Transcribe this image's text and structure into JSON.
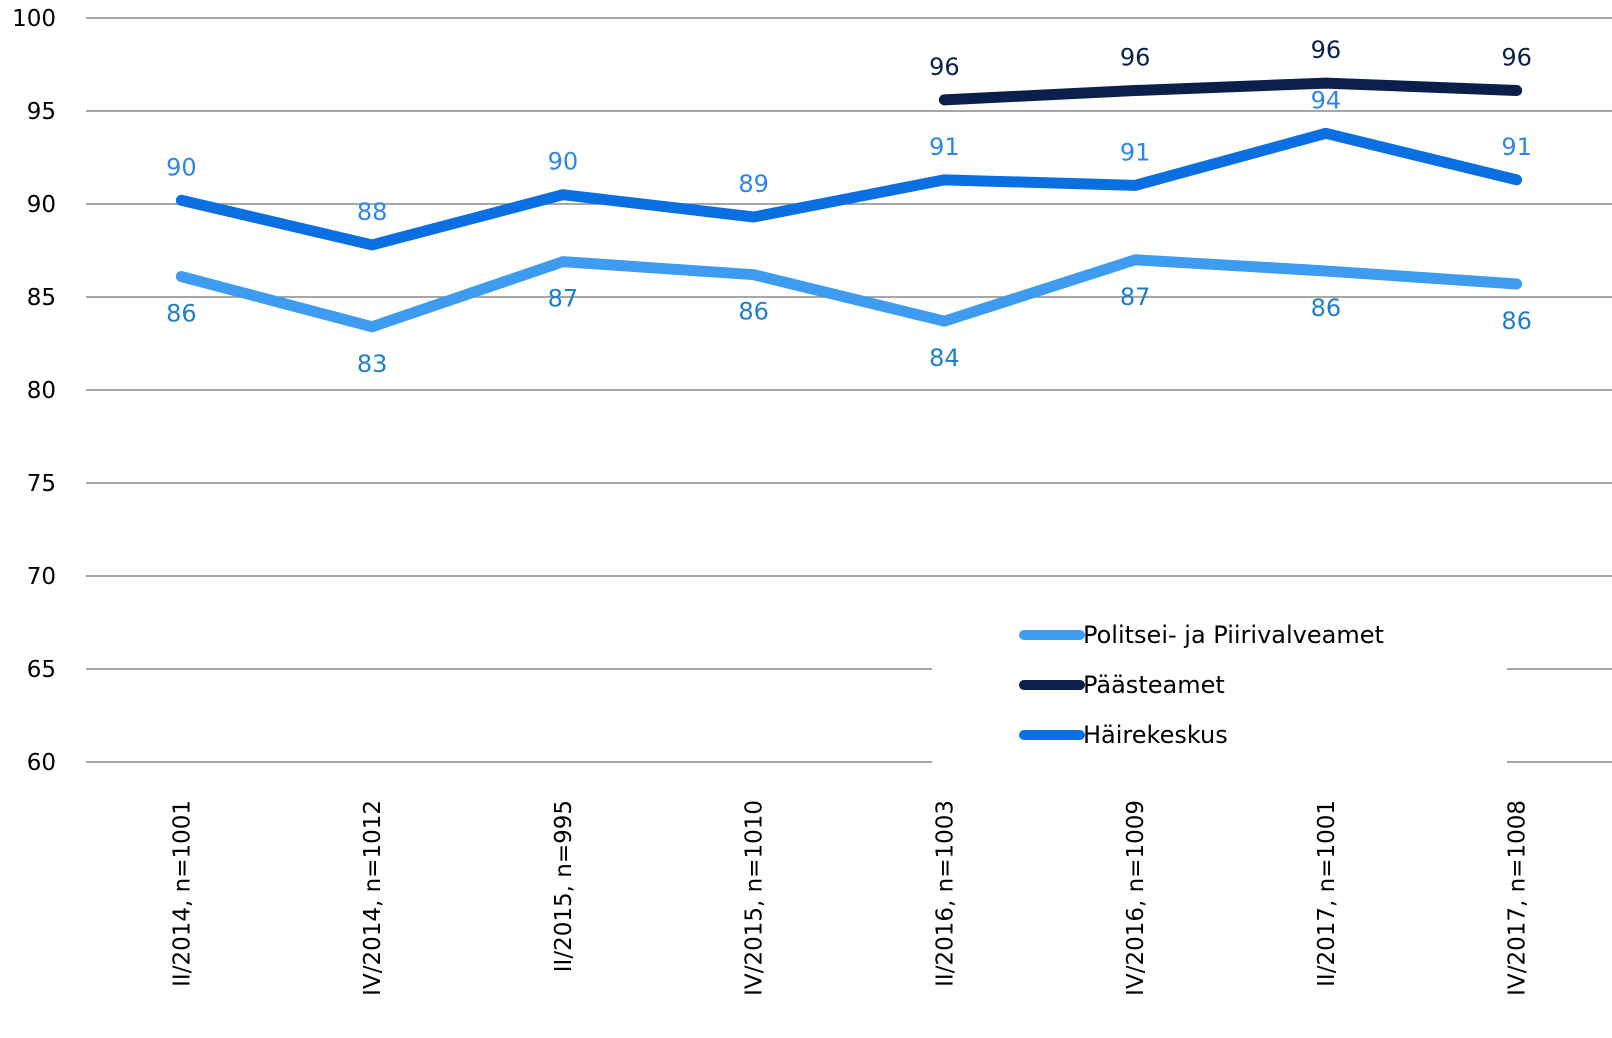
{
  "chart_data": {
    "type": "line",
    "ylim": [
      60,
      100
    ],
    "y_ticks": [
      "60",
      "65",
      "70",
      "75",
      "80",
      "85",
      "90",
      "95",
      "100"
    ],
    "grid": true,
    "legend_position": "bottom-right",
    "categories": [
      "II/2014,  n=1001",
      "IV/2014,  n=1012",
      "II/2015,  n=995",
      "IV/2015,  n=1010",
      "II/2016,  n=1003",
      "IV/2016,  n=1009",
      "II/2017,  n=1001",
      "IV/2017,  n=1008"
    ],
    "series": [
      {
        "name": "Politsei- ja Piirivalveamet",
        "color": "#3d9bf0",
        "label_color": "#1f7fcc",
        "values": [
          86.1,
          83.4,
          86.9,
          86.2,
          83.7,
          87.0,
          86.4,
          85.7
        ],
        "labels": [
          "86",
          "83",
          "87",
          "86",
          "84",
          "87",
          "86",
          "86"
        ]
      },
      {
        "name": "Päästeamet",
        "color": "#0b1f4b",
        "label_color": "#0b1f4b",
        "values": [
          null,
          null,
          null,
          null,
          95.6,
          96.1,
          96.5,
          96.1
        ],
        "labels": [
          null,
          null,
          null,
          null,
          "96",
          "96",
          "96",
          "96"
        ]
      },
      {
        "name": "Häirekeskus",
        "color": "#0a6fe0",
        "label_color": "#2f86ea",
        "values": [
          90.2,
          87.8,
          90.5,
          89.3,
          91.3,
          91.0,
          93.8,
          91.3
        ],
        "labels": [
          "90",
          "88",
          "90",
          "89",
          "91",
          "91",
          "94",
          "91"
        ]
      }
    ]
  }
}
